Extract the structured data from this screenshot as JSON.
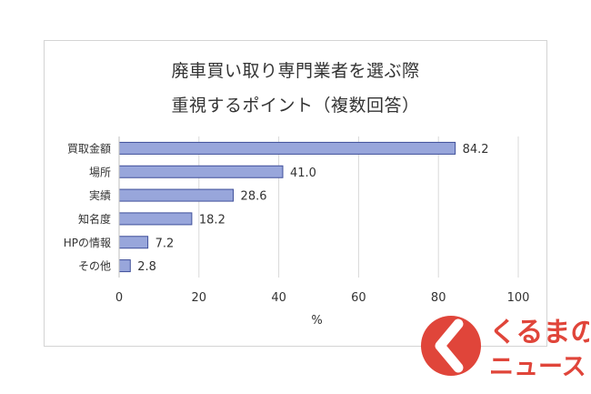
{
  "chart_data": {
    "type": "bar",
    "orientation": "horizontal",
    "title_line1": "廃車買い取り専門業者を選ぶ際",
    "title_line2": "重視するポイント（複数回答）",
    "xlabel": "%",
    "ylabel": "",
    "xlim": [
      0,
      100
    ],
    "xticks": [
      "0",
      "20",
      "40",
      "60",
      "80",
      "100"
    ],
    "xtick_values": [
      0,
      20,
      40,
      60,
      80,
      100
    ],
    "grid": "vertical",
    "categories": [
      "買取金額",
      "場所",
      "実績",
      "知名度",
      "HPの情報",
      "その他"
    ],
    "values": [
      84.2,
      41.0,
      28.6,
      18.2,
      7.2,
      2.8
    ],
    "value_labels": [
      "84.2",
      "41.0",
      "28.6",
      "18.2",
      "7.2",
      "2.8"
    ],
    "colors": {
      "bar_fill": "#98a6db",
      "bar_stroke": "#3f4f9a",
      "grid": "#d9d9d9",
      "text": "#333333"
    }
  },
  "watermark": {
    "logo_text_top": "くるまの",
    "logo_text_bottom": "ニュース",
    "brand_color": "#e0453a"
  }
}
